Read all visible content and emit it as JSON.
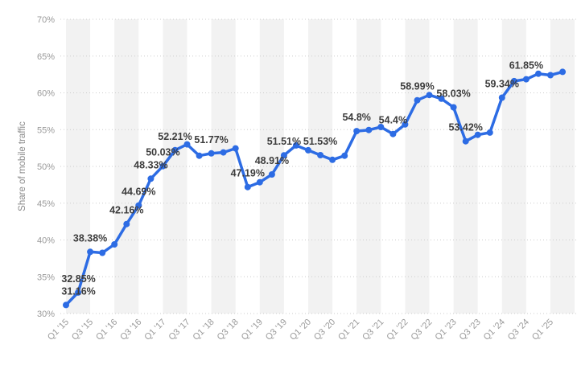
{
  "chart_data": {
    "type": "line",
    "title": "",
    "ylabel": "Share of mobile traffic",
    "xlabel": "",
    "ylim": [
      30,
      70
    ],
    "ytick_step": 5,
    "grid": "horizontal dotted gridlines, alternating vertical background stripes",
    "legend": "none",
    "line_color": "#2d6ce4",
    "stripe_color": "#f2f2f2",
    "gridline_color": "#cccccc",
    "tick_label_color": "#9a9a9a",
    "data_label_color": "#3d3d3d",
    "ytick_labels": [
      "30%",
      "35%",
      "40%",
      "45%",
      "50%",
      "55%",
      "60%",
      "65%",
      "70%"
    ],
    "xtick_labels": [
      "Q1 '15",
      "Q3 '15",
      "Q1 '16",
      "Q3 '16",
      "Q1 '17",
      "Q3 '17",
      "Q1 '18",
      "Q3 '18",
      "Q1 '19",
      "Q3 '19",
      "Q1 '20",
      "Q3 '20",
      "Q1 '21",
      "Q3 '21",
      "Q1 '22",
      "Q3 '22",
      "Q1 '23",
      "Q3 '23",
      "Q1 '24",
      "Q3 '24",
      "Q1 '25"
    ],
    "series": [
      {
        "name": "Share of mobile traffic",
        "x": [
          "Q1 '15",
          "Q2 '15",
          "Q3 '15",
          "Q4 '15",
          "Q1 '16",
          "Q2 '16",
          "Q3 '16",
          "Q4 '16",
          "Q1 '17",
          "Q2 '17",
          "Q3 '17",
          "Q4 '17",
          "Q1 '18",
          "Q2 '18",
          "Q3 '18",
          "Q4 '18",
          "Q1 '19",
          "Q2 '19",
          "Q3 '19",
          "Q4 '19",
          "Q1 '20",
          "Q2 '20",
          "Q3 '20",
          "Q4 '20",
          "Q1 '21",
          "Q2 '21",
          "Q3 '21",
          "Q4 '21",
          "Q1 '22",
          "Q2 '22",
          "Q3 '22",
          "Q4 '22",
          "Q1 '23",
          "Q2 '23",
          "Q3 '23",
          "Q4 '23",
          "Q1 '24",
          "Q2 '24",
          "Q3 '24",
          "Q4 '24",
          "Q1 '25",
          "Q2 '25"
        ],
        "values": [
          31.16,
          32.85,
          38.38,
          38.25,
          39.4,
          42.16,
          44.69,
          48.33,
          50.03,
          52.21,
          52.99,
          51.45,
          51.77,
          51.9,
          52.45,
          47.19,
          47.85,
          48.91,
          51.51,
          52.85,
          52.2,
          51.53,
          50.9,
          51.45,
          54.8,
          54.95,
          55.35,
          54.4,
          55.7,
          58.99,
          59.7,
          59.2,
          58.03,
          53.42,
          54.3,
          54.6,
          59.34,
          61.6,
          61.85,
          62.6,
          62.4,
          62.85
        ],
        "point_labels": {
          "0": "31.16%",
          "1": "32.85%",
          "2": "38.38%",
          "5": "42.16%",
          "6": "44.69%",
          "7": "48.33%",
          "8": "50.03%",
          "9": "52.21%",
          "12": "51.77%",
          "15": "47.19%",
          "17": "48.91%",
          "18": "51.51%",
          "21": "51.53%",
          "24": "54.8%",
          "27": "54.4%",
          "29": "58.99%",
          "32": "58.03%",
          "33": "53.42%",
          "36": "59.34%",
          "38": "61.85%"
        }
      }
    ]
  }
}
